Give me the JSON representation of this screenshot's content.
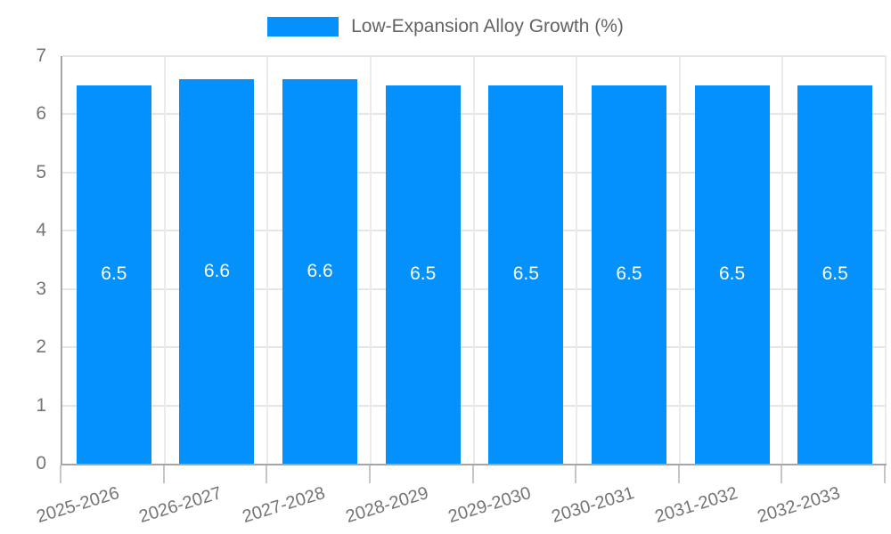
{
  "legend": {
    "label": "Low-Expansion Alloy Growth (%)"
  },
  "chart_data": {
    "type": "bar",
    "title": "Low-Expansion Alloy Growth (%)",
    "categories": [
      "2025-2026",
      "2026-2027",
      "2027-2028",
      "2028-2029",
      "2029-2030",
      "2030-2031",
      "2031-2032",
      "2032-2033"
    ],
    "values": [
      6.5,
      6.6,
      6.6,
      6.5,
      6.5,
      6.5,
      6.5,
      6.5
    ],
    "bar_labels": [
      "6.5",
      "6.6",
      "6.6",
      "6.5",
      "6.5",
      "6.5",
      "6.5",
      "6.5"
    ],
    "xlabel": "",
    "ylabel": "",
    "y_ticks": [
      0,
      1,
      2,
      3,
      4,
      5,
      6,
      7
    ],
    "ylim": [
      0,
      7
    ],
    "grid": true,
    "legend_position": "top-center",
    "bar_color": "#0591fb",
    "bar_label_color": "#ffffff",
    "axis_color": "#a6a6a6",
    "gridline_color": "#e6e6e6",
    "tick_label_color": "#757575",
    "title_color": "#636363"
  }
}
